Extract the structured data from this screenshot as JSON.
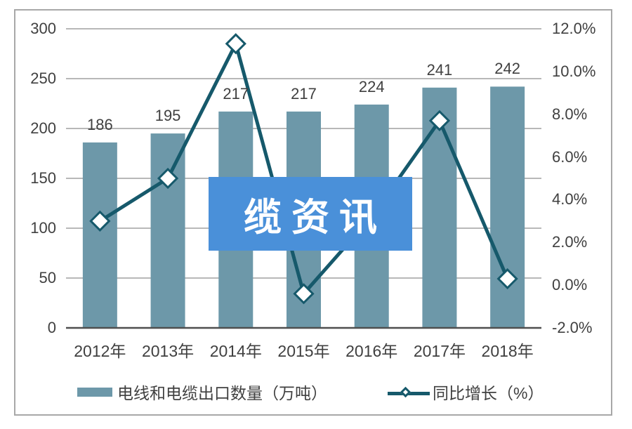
{
  "watermark": {
    "text": "缆资讯",
    "bg_color": "#4a90d9",
    "text_color": "#ffffff"
  },
  "legend": {
    "bar_label": "电线和电缆出口数量（万吨）",
    "line_label": "同比增长（%）",
    "position": "bottom"
  },
  "chart_data": {
    "type": "combo-bar-line",
    "categories": [
      "2012年",
      "2013年",
      "2014年",
      "2015年",
      "2016年",
      "2017年",
      "2018年"
    ],
    "series": [
      {
        "name": "电线和电缆出口数量（万吨）",
        "type": "bar",
        "axis": "left",
        "color": "#6d98a9",
        "values": [
          186,
          195,
          217,
          217,
          224,
          241,
          242
        ],
        "data_labels": [
          "186",
          "195",
          "217",
          "217",
          "224",
          "241",
          "242"
        ]
      },
      {
        "name": "同比增长（%）",
        "type": "line",
        "axis": "right",
        "color": "#16596b",
        "marker": "diamond",
        "marker_fill": "#ffffff",
        "values": [
          3.0,
          5.0,
          11.3,
          -0.4,
          3.2,
          7.7,
          0.3
        ]
      }
    ],
    "left_axis": {
      "min": 0,
      "max": 300,
      "step": 50,
      "ticks": [
        {
          "value": 300,
          "label": "300"
        },
        {
          "value": 250,
          "label": "250"
        },
        {
          "value": 200,
          "label": "200"
        },
        {
          "value": 150,
          "label": "150"
        },
        {
          "value": 100,
          "label": "100"
        },
        {
          "value": 50,
          "label": "50"
        },
        {
          "value": 0,
          "label": "0"
        }
      ]
    },
    "right_axis": {
      "min": -2,
      "max": 12,
      "step": 2,
      "ticks": [
        {
          "value": 12,
          "label": "12.0%"
        },
        {
          "value": 10,
          "label": "10.0%"
        },
        {
          "value": 8,
          "label": "8.0%"
        },
        {
          "value": 6,
          "label": "6.0%"
        },
        {
          "value": 4,
          "label": "4.0%"
        },
        {
          "value": 2,
          "label": "2.0%"
        },
        {
          "value": 0,
          "label": "0.0%"
        },
        {
          "value": -2,
          "label": "-2.0%"
        }
      ]
    },
    "grid": true,
    "colors": {
      "gridline": "#a0a0a0",
      "axis_line": "#4f4f4f",
      "text": "#404040",
      "frame_border": "#a8a8a8",
      "background": "#ffffff"
    }
  }
}
